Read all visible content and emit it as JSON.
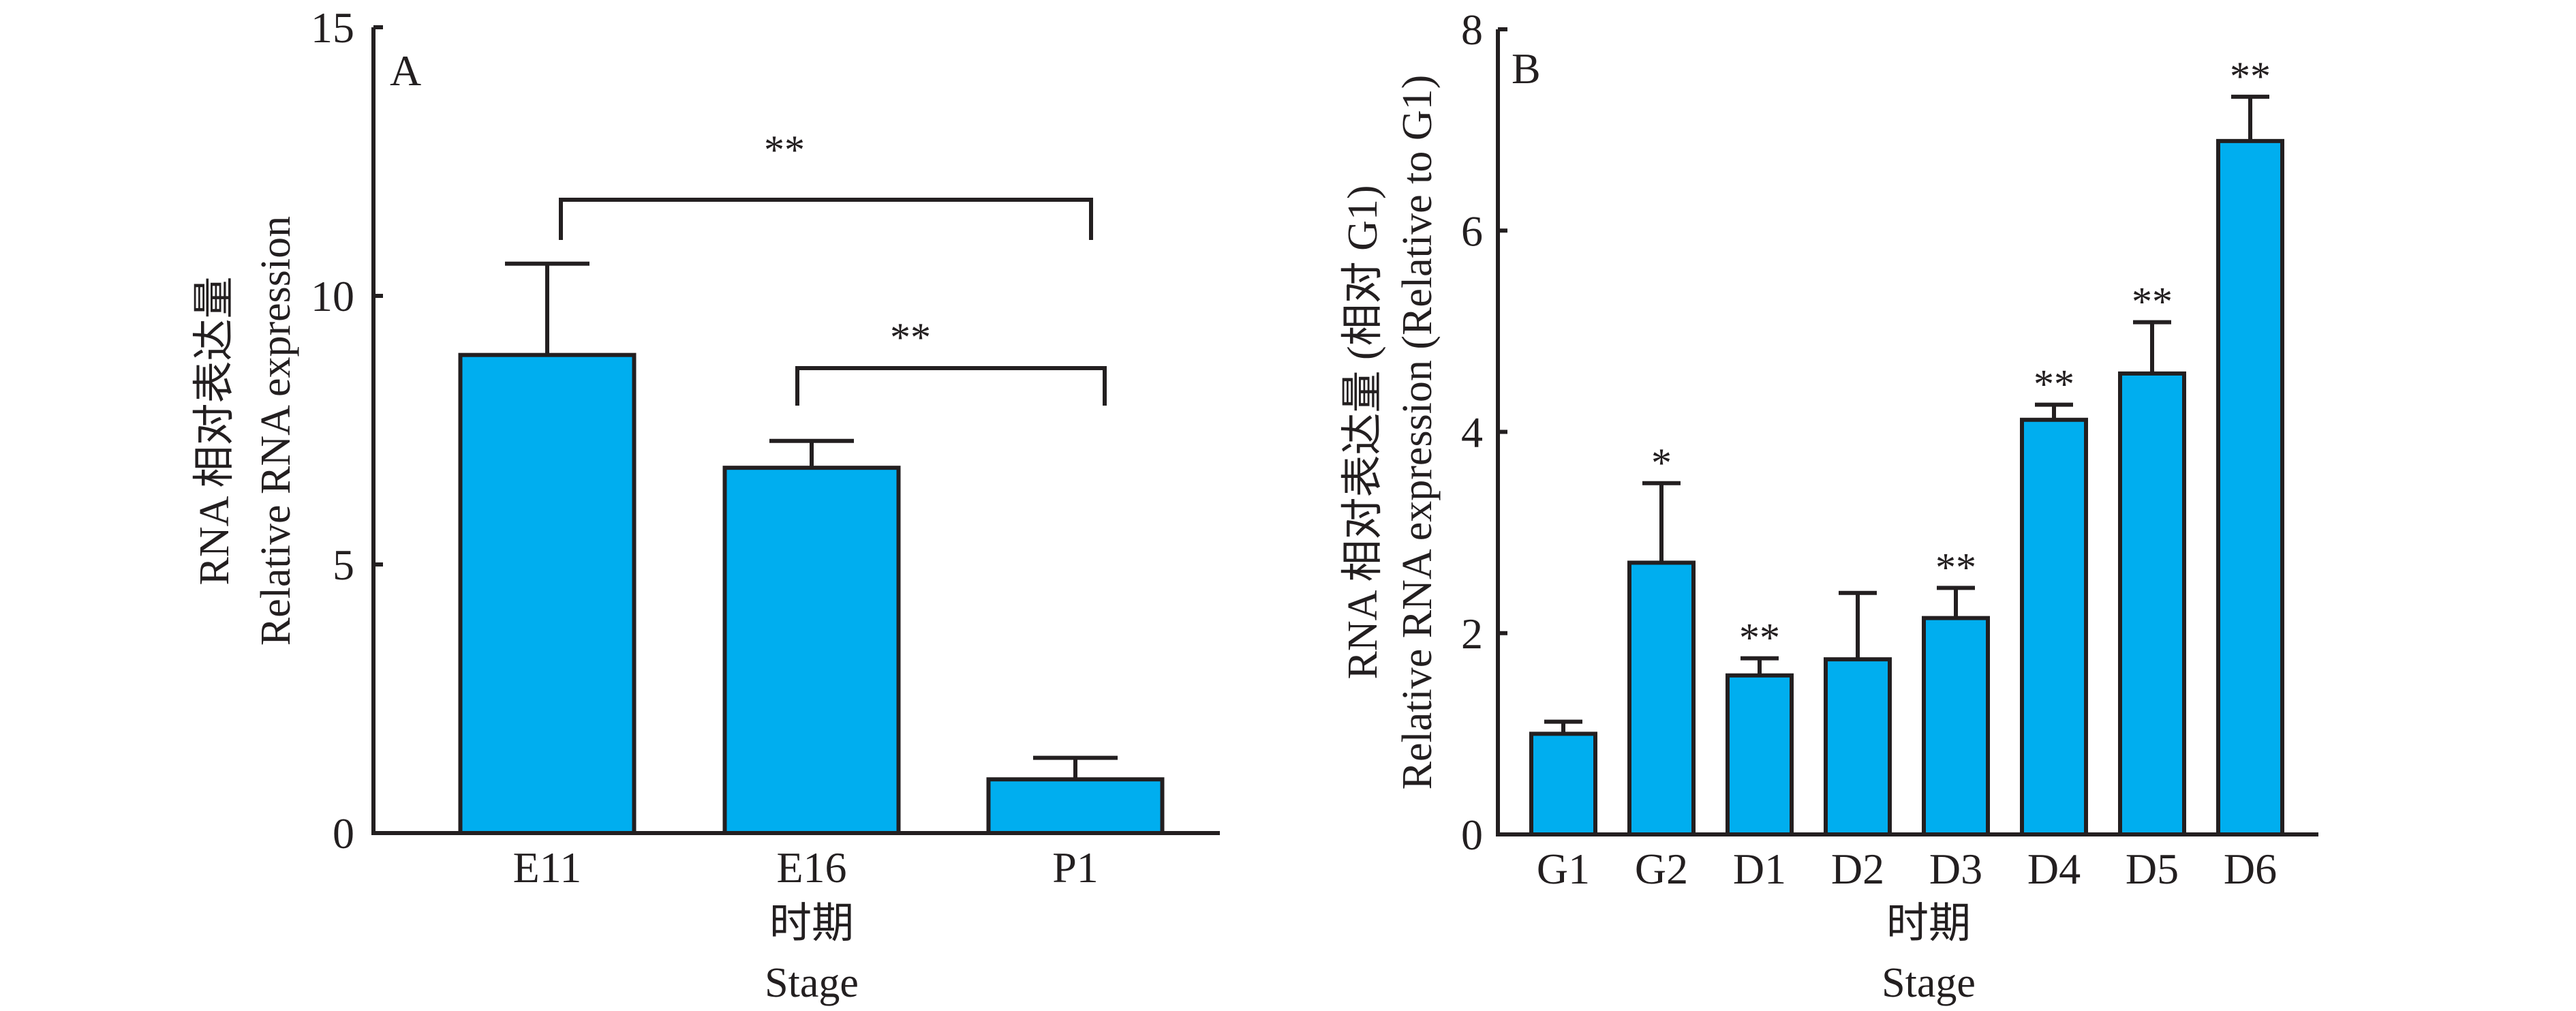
{
  "colors": {
    "bar": "#00aeef",
    "stroke": "#231f20"
  },
  "chart_data": [
    {
      "type": "bar",
      "panel_label": "A",
      "categories": [
        "E11",
        "E16",
        "P1"
      ],
      "values": [
        8.9,
        6.8,
        1.0
      ],
      "error_upper": [
        10.6,
        7.3,
        1.4
      ],
      "ylim": [
        0,
        15
      ],
      "yticks": [
        0,
        5,
        10,
        15
      ],
      "ylabel_lines": [
        "RNA 相对表达量",
        "Relative RNA expression"
      ],
      "xlabel_lines": [
        "时期",
        "Stage"
      ],
      "significance_brackets": [
        {
          "from": "E11",
          "to": "P1",
          "label": "**"
        },
        {
          "from": "E16",
          "to": "P1",
          "label": "**"
        }
      ]
    },
    {
      "type": "bar",
      "panel_label": "B",
      "categories": [
        "G1",
        "G2",
        "D1",
        "D2",
        "D3",
        "D4",
        "D5",
        "D6"
      ],
      "values": [
        1.0,
        2.7,
        1.58,
        1.74,
        2.15,
        4.12,
        4.58,
        6.89
      ],
      "error_upper": [
        1.12,
        3.49,
        1.75,
        2.4,
        2.45,
        4.27,
        5.09,
        7.33
      ],
      "significance": [
        "",
        "*",
        "**",
        "",
        "**",
        "**",
        "**",
        "**"
      ],
      "ylim": [
        0,
        8
      ],
      "yticks": [
        0,
        2,
        4,
        6,
        8
      ],
      "ylabel_lines": [
        "RNA 相对表达量 (相对 G1)",
        "Relative RNA expression (Relative to G1)"
      ],
      "xlabel_lines": [
        "时期",
        "Stage"
      ]
    }
  ]
}
